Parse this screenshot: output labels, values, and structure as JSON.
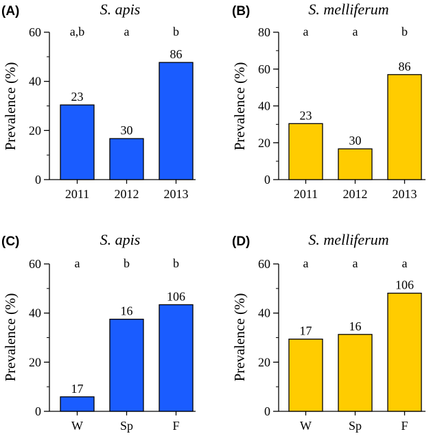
{
  "ylabel": "Prevalence (%)",
  "chart_data": [
    {
      "type": "bar",
      "panel": "(A)",
      "title": "S. apis",
      "ylabel": "Prevalence (%)",
      "categories": [
        "2011",
        "2012",
        "2013"
      ],
      "values": [
        30.4,
        16.7,
        47.7
      ],
      "data_labels": [
        "23",
        "30",
        "86"
      ],
      "significance": [
        "a,b",
        "a",
        "b"
      ],
      "yticks": [
        "0",
        "20",
        "40",
        "60"
      ],
      "ylim": [
        0,
        60
      ],
      "minor_step": 10,
      "color": "#1a5cff"
    },
    {
      "type": "bar",
      "panel": "(B)",
      "title": "S. melliferum",
      "ylabel": "Prevalence (%)",
      "categories": [
        "2011",
        "2012",
        "2013"
      ],
      "values": [
        30.4,
        16.7,
        57.0
      ],
      "data_labels": [
        "23",
        "30",
        "86"
      ],
      "significance": [
        "a",
        "a",
        "b"
      ],
      "yticks": [
        "0",
        "20",
        "40",
        "60",
        "80"
      ],
      "ylim": [
        0,
        80
      ],
      "minor_step": 10,
      "color": "#ffcc00"
    },
    {
      "type": "bar",
      "panel": "(C)",
      "title": "S. apis",
      "ylabel": "Prevalence (%)",
      "categories": [
        "W",
        "Sp",
        "F"
      ],
      "values": [
        5.9,
        37.5,
        43.4
      ],
      "data_labels": [
        "17",
        "16",
        "106"
      ],
      "significance": [
        "a",
        "b",
        "b"
      ],
      "yticks": [
        "0",
        "20",
        "40",
        "60"
      ],
      "ylim": [
        0,
        60
      ],
      "minor_step": 10,
      "color": "#1a5cff"
    },
    {
      "type": "bar",
      "panel": "(D)",
      "title": "S. melliferum",
      "ylabel": "Prevalence (%)",
      "categories": [
        "W",
        "Sp",
        "F"
      ],
      "values": [
        29.4,
        31.3,
        48.1
      ],
      "data_labels": [
        "17",
        "16",
        "106"
      ],
      "significance": [
        "a",
        "a",
        "a"
      ],
      "yticks": [
        "0",
        "20",
        "40",
        "60"
      ],
      "ylim": [
        0,
        60
      ],
      "minor_step": 10,
      "color": "#ffcc00"
    }
  ]
}
